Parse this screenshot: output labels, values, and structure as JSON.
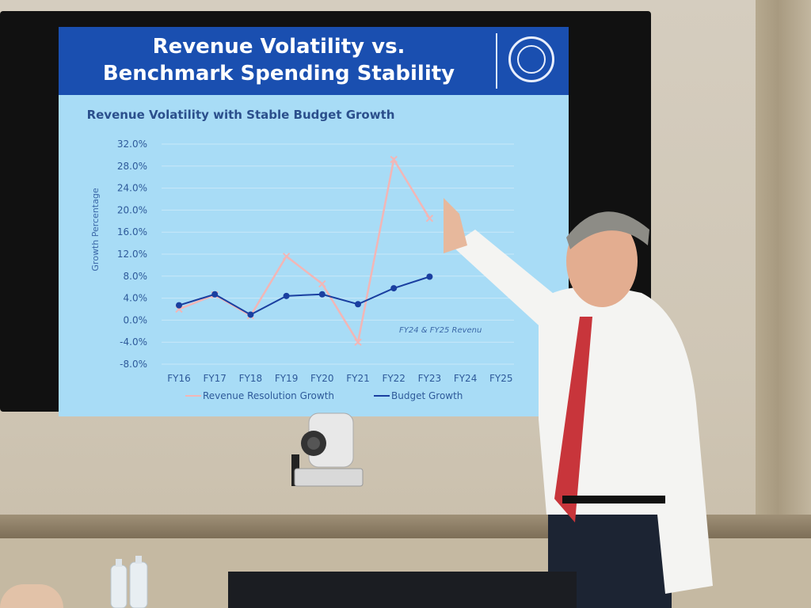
{
  "slide": {
    "title_line1": "Revenue Volatility vs.",
    "title_line2": "Benchmark Spending Stability",
    "banner_color": "#1a4fb0",
    "seal_icon": "state-seal-icon"
  },
  "chart_data": {
    "type": "line",
    "title": "Revenue Volatility with Stable Budget Growth",
    "ylabel": "Growth Percentage",
    "xlabel": "",
    "categories": [
      "FY16",
      "FY17",
      "FY18",
      "FY19",
      "FY20",
      "FY21",
      "FY22",
      "FY23",
      "FY24",
      "FY25"
    ],
    "ylim": [
      -8,
      32
    ],
    "yticks": [
      "32.0%",
      "28.0%",
      "24.0%",
      "20.0%",
      "16.0%",
      "12.0%",
      "8.0%",
      "4.0%",
      "0.0%",
      "-4.0%",
      "-8.0%"
    ],
    "ytick_values": [
      32,
      28,
      24,
      20,
      16,
      12,
      8,
      4,
      0,
      -4,
      -8
    ],
    "grid": true,
    "legend_position": "bottom",
    "series": [
      {
        "name": "Revenue Resolution Growth",
        "color": "#f2b6b6",
        "marker": "x",
        "values": [
          2.0,
          4.6,
          0.8,
          11.6,
          6.6,
          -4.0,
          29.2,
          18.5,
          null,
          null
        ]
      },
      {
        "name": "Budget Growth",
        "color": "#1a3fa0",
        "marker": "circle",
        "values": [
          2.7,
          4.7,
          1.0,
          4.4,
          4.7,
          2.9,
          5.8,
          7.9,
          null,
          null
        ]
      }
    ],
    "annotation": "FY24 & FY25 Revenu"
  }
}
